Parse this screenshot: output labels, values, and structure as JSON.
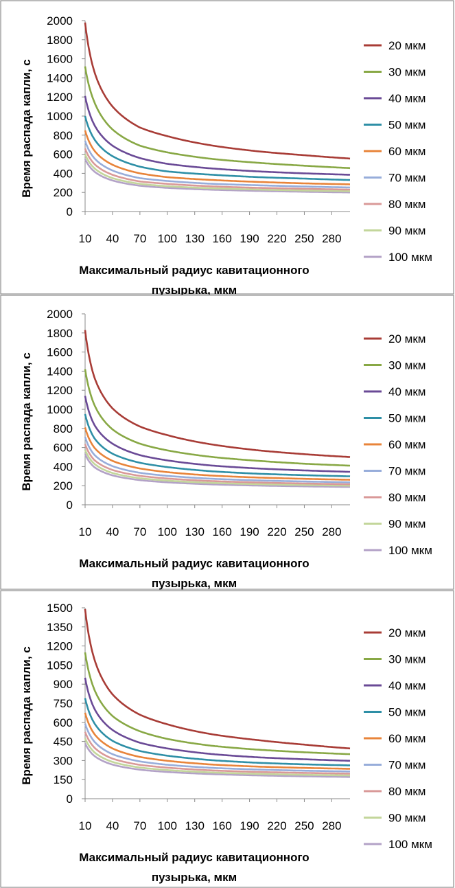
{
  "chart_data": [
    {
      "type": "line",
      "panel": "top",
      "xlabel_line1": "Максимальный радиус кавитационного",
      "xlabel_line2": "пузырька, мкм",
      "ylabel": "Время распада капли, с",
      "ylim": [
        0,
        2000
      ],
      "yticks": [
        0,
        200,
        400,
        600,
        800,
        1000,
        1200,
        1400,
        1600,
        1800,
        2000
      ],
      "xlim": [
        10,
        300
      ],
      "xticks": [
        10,
        40,
        70,
        100,
        130,
        160,
        190,
        220,
        250,
        280
      ],
      "legend_position": "right",
      "series": [
        {
          "name": "20 мкм",
          "color": "#a83c36",
          "x": [
            10,
            20,
            40,
            70,
            100,
            150,
            200,
            250,
            300
          ],
          "y": [
            1980,
            1470,
            1100,
            880,
            790,
            690,
            630,
            590,
            555
          ]
        },
        {
          "name": "30 мкм",
          "color": "#88a845",
          "x": [
            10,
            20,
            40,
            70,
            100,
            150,
            200,
            250,
            300
          ],
          "y": [
            1520,
            1150,
            860,
            690,
            620,
            550,
            510,
            480,
            455
          ]
        },
        {
          "name": "40 мкм",
          "color": "#6a4a96",
          "x": [
            10,
            20,
            40,
            70,
            100,
            150,
            200,
            250,
            300
          ],
          "y": [
            1210,
            910,
            690,
            560,
            500,
            450,
            420,
            400,
            385
          ]
        },
        {
          "name": "50 мкм",
          "color": "#2e8fa6",
          "x": [
            10,
            20,
            40,
            70,
            100,
            150,
            200,
            250,
            300
          ],
          "y": [
            1000,
            760,
            580,
            470,
            420,
            385,
            360,
            345,
            330
          ]
        },
        {
          "name": "60 мкм",
          "color": "#e8843a",
          "x": [
            10,
            20,
            40,
            70,
            100,
            150,
            200,
            250,
            300
          ],
          "y": [
            850,
            640,
            490,
            400,
            360,
            330,
            310,
            295,
            285
          ]
        },
        {
          "name": "70 мкм",
          "color": "#97adda",
          "x": [
            10,
            20,
            40,
            70,
            100,
            150,
            200,
            250,
            300
          ],
          "y": [
            740,
            560,
            430,
            350,
            320,
            290,
            275,
            262,
            252
          ]
        },
        {
          "name": "80 мкм",
          "color": "#d99998",
          "x": [
            10,
            20,
            40,
            70,
            100,
            150,
            200,
            250,
            300
          ],
          "y": [
            660,
            500,
            385,
            315,
            290,
            263,
            248,
            238,
            230
          ]
        },
        {
          "name": "90 мкм",
          "color": "#c3d69b",
          "x": [
            10,
            20,
            40,
            70,
            100,
            150,
            200,
            250,
            300
          ],
          "y": [
            600,
            455,
            350,
            290,
            265,
            243,
            230,
            220,
            213
          ]
        },
        {
          "name": "100 мкм",
          "color": "#b3a2c7",
          "x": [
            10,
            20,
            40,
            70,
            100,
            150,
            200,
            250,
            300
          ],
          "y": [
            550,
            420,
            325,
            270,
            248,
            228,
            216,
            207,
            200
          ]
        }
      ]
    },
    {
      "type": "line",
      "panel": "middle",
      "xlabel_line1": "Максимальный радиус кавитационного",
      "xlabel_line2": "пузырька, мкм",
      "ylabel": "Время распада капли, с",
      "ylim": [
        0,
        2000
      ],
      "yticks": [
        0,
        200,
        400,
        600,
        800,
        1000,
        1200,
        1400,
        1600,
        1800,
        2000
      ],
      "xlim": [
        10,
        300
      ],
      "xticks": [
        10,
        40,
        70,
        100,
        130,
        160,
        190,
        220,
        250,
        280
      ],
      "legend_position": "right",
      "series": [
        {
          "name": "20 мкм",
          "color": "#a83c36",
          "x": [
            10,
            20,
            40,
            70,
            100,
            150,
            200,
            250,
            300
          ],
          "y": [
            1830,
            1340,
            1010,
            820,
            730,
            630,
            570,
            530,
            500
          ]
        },
        {
          "name": "30 мкм",
          "color": "#88a845",
          "x": [
            10,
            20,
            40,
            70,
            100,
            150,
            200,
            250,
            300
          ],
          "y": [
            1420,
            1050,
            790,
            640,
            570,
            500,
            460,
            430,
            410
          ]
        },
        {
          "name": "40 мкм",
          "color": "#6a4a96",
          "x": [
            10,
            20,
            40,
            70,
            100,
            150,
            200,
            250,
            300
          ],
          "y": [
            1140,
            840,
            640,
            520,
            465,
            410,
            380,
            360,
            345
          ]
        },
        {
          "name": "50 мкм",
          "color": "#2e8fa6",
          "x": [
            10,
            20,
            40,
            70,
            100,
            150,
            200,
            250,
            300
          ],
          "y": [
            950,
            700,
            535,
            440,
            395,
            350,
            325,
            310,
            298
          ]
        },
        {
          "name": "60 мкм",
          "color": "#e8843a",
          "x": [
            10,
            20,
            40,
            70,
            100,
            150,
            200,
            250,
            300
          ],
          "y": [
            810,
            600,
            460,
            380,
            342,
            305,
            285,
            272,
            262
          ]
        },
        {
          "name": "70 мкм",
          "color": "#97adda",
          "x": [
            10,
            20,
            40,
            70,
            100,
            150,
            200,
            250,
            300
          ],
          "y": [
            710,
            525,
            405,
            335,
            303,
            272,
            255,
            244,
            235
          ]
        },
        {
          "name": "80 мкм",
          "color": "#d99998",
          "x": [
            10,
            20,
            40,
            70,
            100,
            150,
            200,
            250,
            300
          ],
          "y": [
            635,
            470,
            365,
            303,
            275,
            248,
            233,
            223,
            215
          ]
        },
        {
          "name": "90 мкм",
          "color": "#c3d69b",
          "x": [
            10,
            20,
            40,
            70,
            100,
            150,
            200,
            250,
            300
          ],
          "y": [
            575,
            430,
            333,
            278,
            253,
            229,
            216,
            207,
            200
          ]
        },
        {
          "name": "100 мкм",
          "color": "#b3a2c7",
          "x": [
            10,
            20,
            40,
            70,
            100,
            150,
            200,
            250,
            300
          ],
          "y": [
            530,
            395,
            308,
            258,
            235,
            213,
            201,
            193,
            187
          ]
        }
      ]
    },
    {
      "type": "line",
      "panel": "bottom",
      "xlabel_line1": "Максимальный радиус кавитационного",
      "xlabel_line2": "пузырька, мкм",
      "ylabel": "Время распада капли, с",
      "ylim": [
        0,
        1500
      ],
      "yticks": [
        0,
        150,
        300,
        450,
        600,
        750,
        900,
        1050,
        1200,
        1350,
        1500
      ],
      "xlim": [
        10,
        300
      ],
      "xticks": [
        10,
        40,
        70,
        100,
        130,
        160,
        190,
        220,
        250,
        280
      ],
      "legend_position": "right",
      "series": [
        {
          "name": "20 мкм",
          "color": "#a83c36",
          "x": [
            10,
            20,
            40,
            70,
            100,
            150,
            200,
            250,
            300
          ],
          "y": [
            1490,
            1100,
            820,
            660,
            585,
            505,
            460,
            425,
            395
          ]
        },
        {
          "name": "30 мкм",
          "color": "#88a845",
          "x": [
            10,
            20,
            40,
            70,
            100,
            150,
            200,
            250,
            300
          ],
          "y": [
            1150,
            860,
            650,
            530,
            470,
            415,
            385,
            365,
            350
          ]
        },
        {
          "name": "40 мкм",
          "color": "#6a4a96",
          "x": [
            10,
            20,
            40,
            70,
            100,
            150,
            200,
            250,
            300
          ],
          "y": [
            950,
            710,
            540,
            440,
            395,
            350,
            325,
            310,
            298
          ]
        },
        {
          "name": "50 мкм",
          "color": "#2e8fa6",
          "x": [
            10,
            20,
            40,
            70,
            100,
            150,
            200,
            250,
            300
          ],
          "y": [
            790,
            595,
            455,
            375,
            338,
            302,
            282,
            270,
            262
          ]
        },
        {
          "name": "60 мкм",
          "color": "#e8843a",
          "x": [
            10,
            20,
            40,
            70,
            100,
            150,
            200,
            250,
            300
          ],
          "y": [
            675,
            510,
            395,
            328,
            298,
            268,
            252,
            242,
            235
          ]
        },
        {
          "name": "70 мкм",
          "color": "#97adda",
          "x": [
            10,
            20,
            40,
            70,
            100,
            150,
            200,
            250,
            300
          ],
          "y": [
            590,
            450,
            350,
            293,
            267,
            242,
            229,
            220,
            214
          ]
        },
        {
          "name": "80 мкм",
          "color": "#d99998",
          "x": [
            10,
            20,
            40,
            70,
            100,
            150,
            200,
            250,
            300
          ],
          "y": [
            525,
            403,
            315,
            266,
            244,
            222,
            210,
            203,
            197
          ]
        },
        {
          "name": "90 мкм",
          "color": "#c3d69b",
          "x": [
            10,
            20,
            40,
            70,
            100,
            150,
            200,
            250,
            300
          ],
          "y": [
            475,
            366,
            289,
            245,
            225,
            206,
            195,
            188,
            183
          ]
        },
        {
          "name": "100 мкм",
          "color": "#b3a2c7",
          "x": [
            10,
            20,
            40,
            70,
            100,
            150,
            200,
            250,
            300
          ],
          "y": [
            435,
            337,
            268,
            228,
            210,
            193,
            183,
            176,
            171
          ]
        }
      ]
    }
  ]
}
